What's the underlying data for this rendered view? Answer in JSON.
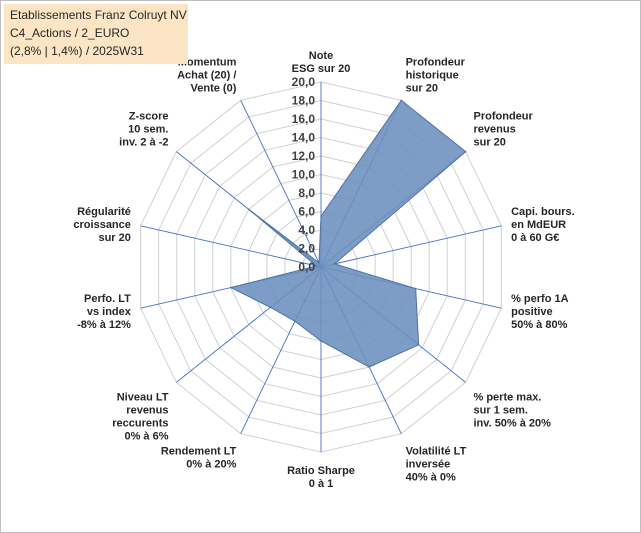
{
  "header": {
    "lines": [
      "Etablissements Franz Colruyt NV",
      "C4_Actions / 2_EURO",
      "(2,8% | 1,4%) / 2025W31"
    ]
  },
  "chart_data": {
    "type": "radar",
    "title": "",
    "rlim": [
      0,
      20
    ],
    "r_ticks": [
      "0,0",
      "2,0",
      "4,0",
      "6,0",
      "8,0",
      "10,0",
      "12,0",
      "14,0",
      "16,0",
      "18,0",
      "20,0"
    ],
    "grid": true,
    "axes": [
      [
        "Note",
        "ESG sur 20"
      ],
      [
        "Profondeur",
        "historique",
        "sur 20"
      ],
      [
        "Profondeur",
        "revenus",
        "sur 20"
      ],
      [
        "Capi. bours.",
        "en MdEUR",
        "0 à 60 G€"
      ],
      [
        "% perfo 1A",
        "positive",
        "50% à 80%"
      ],
      [
        "% perte max.",
        "sur 1 sem.",
        "inv. 50% à 20%"
      ],
      [
        "Volatilité LT",
        "inversée",
        "40% à 0%"
      ],
      [
        "Ratio Sharpe",
        "0 à 1"
      ],
      [
        "Rendement LT",
        "0% à 20%"
      ],
      [
        "Niveau LT",
        "revenus",
        "reccurents",
        "0% à 6%"
      ],
      [
        "Perfo. LT",
        "vs index",
        "-8% à 12%"
      ],
      [
        "Régularité",
        "croissance",
        "sur 20"
      ],
      [
        "Z-score",
        "10 sem.",
        "inv. 2 à -2"
      ],
      [
        "Momentum",
        "Achat (20) /",
        "Vente (0)"
      ]
    ],
    "series": [
      {
        "values": [
          5.5,
          20.0,
          20.0,
          1.5,
          10.5,
          13.5,
          12.0,
          8.0,
          6.5,
          7.0,
          10.0,
          0.5,
          10.0,
          0.5
        ]
      }
    ],
    "colors": {
      "fill": "#6b8fbf",
      "stroke": "#4f73a3",
      "grid": "#d0d0d0",
      "spoke": "#4472c4"
    }
  }
}
